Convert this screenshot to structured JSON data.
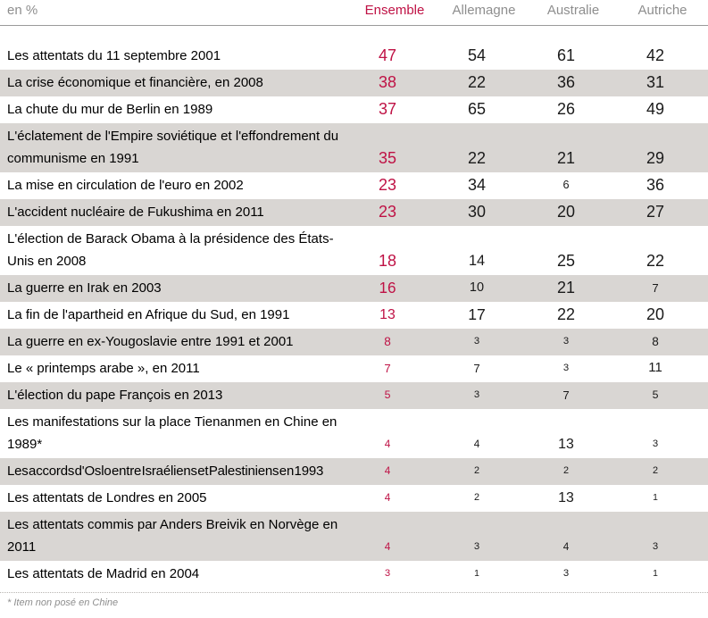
{
  "colors": {
    "accent": "#bf1245",
    "stripe": "#d9d6d3",
    "header_text": "#8e8e8e",
    "body_text": "#000000"
  },
  "chart_data": {
    "type": "table",
    "unit": "en %",
    "title": "",
    "footnote": "* Item non posé en Chine",
    "layout_hints": {
      "striped_rows": true,
      "value_font_size_scales_with_value": true,
      "first_value_column_accent_color": "#bf1245"
    },
    "categories": [
      "Les attentats du 11 septembre 2001",
      "La crise économique et financière, en 2008",
      "La chute du mur de Berlin en 1989",
      "L'éclatement de l'Empire soviétique et l'effondrement du communisme en 1991",
      "La mise en circulation de l'euro en 2002",
      "L'accident nucléaire de Fukushima en 2011",
      "L'élection de Barack Obama à la présidence des États-Unis en 2008",
      "La guerre en Irak en 2003",
      "La fin de l'apartheid en Afrique du Sud, en 1991",
      "La guerre en ex-Yougoslavie entre 1991 et 2001",
      "Le « printemps arabe », en 2011",
      "L'élection du pape François en 2013",
      "Les manifestations sur la place Tienanmen en Chine en 1989*",
      "Les accords d'Oslo entre Israéliens et Palestiniens en 1993",
      "Les attentats de Londres en 2005",
      "Les attentats commis par Anders Breivik en Norvège en 2011",
      "Les attentats de Madrid en 2004"
    ],
    "series": [
      {
        "name": "Ensemble",
        "values": [
          47,
          38,
          37,
          35,
          23,
          23,
          18,
          16,
          13,
          8,
          7,
          5,
          4,
          4,
          4,
          4,
          3
        ]
      },
      {
        "name": "Allemagne",
        "values": [
          54,
          22,
          65,
          22,
          34,
          30,
          14,
          10,
          17,
          3,
          7,
          3,
          4,
          2,
          2,
          3,
          1
        ]
      },
      {
        "name": "Australie",
        "values": [
          61,
          36,
          26,
          21,
          6,
          20,
          25,
          21,
          22,
          3,
          3,
          7,
          13,
          2,
          13,
          4,
          3
        ]
      },
      {
        "name": "Autriche",
        "values": [
          42,
          31,
          49,
          29,
          36,
          27,
          22,
          7,
          20,
          8,
          11,
          5,
          3,
          2,
          1,
          3,
          1
        ]
      }
    ]
  }
}
